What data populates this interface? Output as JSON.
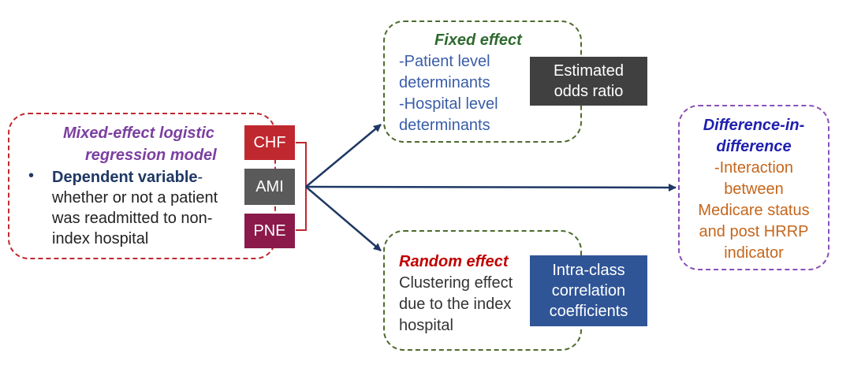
{
  "mixed_model": {
    "title_line1": "Mixed-effect logistic",
    "title_line2": "regression model",
    "bullet": "•",
    "dependent_label": "Dependent variable",
    "dependent_dash": "-",
    "line1": "whether or not a patient",
    "line2": "was readmitted to non-",
    "line3": "index hospital"
  },
  "conditions": [
    "CHF",
    "AMI",
    "PNE"
  ],
  "fixed_effect": {
    "title": "Fixed effect",
    "line1": "-Patient level",
    "line2": "determinants",
    "line3": "-Hospital level",
    "line4": "determinants",
    "output_line1": "Estimated",
    "output_line2": "odds ratio"
  },
  "random_effect": {
    "title": "Random effect",
    "line1": "Clustering effect",
    "line2": "due to the index",
    "line3": "hospital",
    "output_line1": "Intra-class",
    "output_line2": "correlation",
    "output_line3": "coefficients"
  },
  "did": {
    "title_line1": "Difference-in-",
    "title_line2": "difference",
    "line1": "-Interaction",
    "line2": "between",
    "line3": "Medicare status",
    "line4": "and post HRRP",
    "line5": "indicator"
  },
  "colors": {
    "mixed_border": "#c0282f",
    "mixed_title": "#7b3fa0",
    "dependent_text": "#1f3864",
    "effect_border": "#4e6b2d",
    "fixed_title": "#2e6a2e",
    "fixed_text": "#3a5da8",
    "random_title": "#c00000",
    "did_border": "#8b4fb8",
    "did_title": "#1f1fb0",
    "did_text": "#c5661c",
    "chf": "#c0282f",
    "ami": "#5a5a5a",
    "pne": "#8b1a4a",
    "odds_box": "#404040",
    "icc_box": "#2f5597",
    "arrow": "#1f3864"
  }
}
